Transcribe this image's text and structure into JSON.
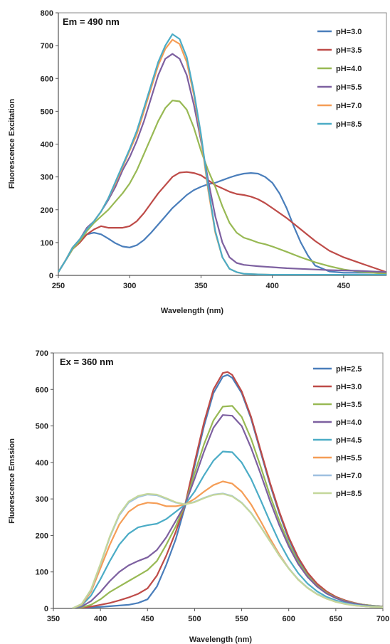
{
  "chart_data": [
    {
      "type": "line",
      "annotation": "Em = 490 nm",
      "xlabel": "Wavelength (nm)",
      "ylabel": "Fluorescence Excitation",
      "xlim": [
        250,
        480
      ],
      "ylim": [
        0,
        800
      ],
      "xticks": [
        250,
        300,
        350,
        400,
        450
      ],
      "yticks": [
        0,
        100,
        200,
        300,
        400,
        500,
        600,
        700,
        800
      ],
      "grid": false,
      "legend_position": "top-right",
      "series": [
        {
          "name": "pH=3.0",
          "color": "#4a7ebb",
          "x": [
            250,
            255,
            260,
            265,
            270,
            275,
            280,
            285,
            290,
            295,
            300,
            305,
            310,
            315,
            320,
            325,
            330,
            335,
            340,
            345,
            350,
            355,
            360,
            365,
            370,
            375,
            380,
            385,
            390,
            395,
            400,
            405,
            410,
            415,
            420,
            425,
            430,
            440,
            450,
            460,
            470,
            480
          ],
          "y": [
            10,
            45,
            80,
            105,
            125,
            130,
            125,
            112,
            98,
            88,
            85,
            92,
            108,
            130,
            155,
            180,
            205,
            225,
            245,
            260,
            270,
            278,
            282,
            290,
            298,
            305,
            310,
            312,
            310,
            300,
            282,
            250,
            205,
            150,
            100,
            60,
            30,
            12,
            8,
            8,
            8,
            6
          ]
        },
        {
          "name": "pH=3.5",
          "color": "#be4b48",
          "x": [
            250,
            255,
            260,
            265,
            270,
            275,
            280,
            285,
            290,
            295,
            300,
            305,
            310,
            315,
            320,
            325,
            330,
            335,
            340,
            345,
            350,
            355,
            360,
            365,
            370,
            375,
            380,
            385,
            390,
            395,
            400,
            410,
            420,
            430,
            440,
            450,
            460,
            470,
            480
          ],
          "y": [
            10,
            45,
            80,
            100,
            125,
            140,
            150,
            145,
            145,
            145,
            150,
            165,
            190,
            220,
            250,
            275,
            300,
            313,
            315,
            312,
            305,
            290,
            275,
            265,
            255,
            248,
            245,
            240,
            232,
            220,
            205,
            175,
            140,
            105,
            75,
            55,
            40,
            25,
            10
          ]
        },
        {
          "name": "pH=4.0",
          "color": "#98b954",
          "x": [
            250,
            255,
            260,
            265,
            270,
            275,
            280,
            285,
            290,
            295,
            300,
            305,
            310,
            315,
            320,
            325,
            330,
            335,
            340,
            345,
            350,
            355,
            360,
            365,
            370,
            375,
            380,
            385,
            390,
            395,
            400,
            410,
            420,
            430,
            440,
            450,
            460,
            470,
            480
          ],
          "y": [
            10,
            45,
            80,
            105,
            135,
            160,
            180,
            200,
            225,
            250,
            280,
            320,
            370,
            420,
            470,
            510,
            533,
            530,
            505,
            450,
            380,
            320,
            270,
            210,
            160,
            130,
            115,
            108,
            100,
            95,
            88,
            72,
            55,
            40,
            28,
            18,
            12,
            8,
            5
          ]
        },
        {
          "name": "pH=5.5",
          "color": "#7d60a0",
          "x": [
            250,
            255,
            260,
            265,
            270,
            275,
            280,
            285,
            290,
            295,
            300,
            305,
            310,
            315,
            320,
            325,
            330,
            335,
            340,
            345,
            350,
            355,
            360,
            365,
            370,
            375,
            380,
            385,
            390,
            400,
            410,
            420,
            430,
            440,
            450,
            460,
            470,
            480
          ],
          "y": [
            10,
            45,
            85,
            110,
            145,
            165,
            195,
            230,
            270,
            320,
            360,
            410,
            470,
            540,
            610,
            660,
            675,
            660,
            610,
            520,
            410,
            290,
            180,
            100,
            55,
            38,
            32,
            30,
            28,
            25,
            22,
            20,
            18,
            16,
            15,
            14,
            12,
            10
          ]
        },
        {
          "name": "pH=7.0",
          "color": "#f59d56",
          "x": [
            250,
            255,
            260,
            265,
            270,
            275,
            280,
            285,
            290,
            295,
            300,
            305,
            310,
            315,
            320,
            325,
            330,
            335,
            340,
            345,
            350,
            355,
            360,
            365,
            370,
            375,
            380,
            390,
            400,
            420,
            440,
            460,
            480
          ],
          "y": [
            10,
            45,
            85,
            110,
            140,
            165,
            195,
            235,
            280,
            330,
            380,
            430,
            500,
            570,
            640,
            690,
            718,
            705,
            650,
            550,
            420,
            260,
            130,
            55,
            20,
            10,
            5,
            3,
            2,
            2,
            2,
            2,
            2
          ]
        },
        {
          "name": "pH=8.5",
          "color": "#4bacc6",
          "x": [
            250,
            255,
            260,
            265,
            270,
            275,
            280,
            285,
            290,
            295,
            300,
            305,
            310,
            315,
            320,
            325,
            330,
            335,
            340,
            345,
            350,
            355,
            360,
            365,
            370,
            375,
            380,
            390,
            400,
            420,
            440,
            460,
            480
          ],
          "y": [
            10,
            45,
            85,
            110,
            140,
            165,
            195,
            235,
            285,
            335,
            385,
            440,
            510,
            580,
            650,
            700,
            735,
            720,
            665,
            560,
            430,
            270,
            135,
            55,
            20,
            10,
            5,
            3,
            2,
            2,
            2,
            2,
            2
          ]
        }
      ]
    },
    {
      "type": "line",
      "annotation": "Ex = 360 nm",
      "xlabel": "Wavelength (nm)",
      "ylabel": "Fluorescence Emssion",
      "xlim": [
        350,
        700
      ],
      "ylim": [
        0,
        700
      ],
      "xticks": [
        350,
        400,
        450,
        500,
        550,
        600,
        650,
        700
      ],
      "yticks": [
        0,
        100,
        200,
        300,
        400,
        500,
        600,
        700
      ],
      "grid": false,
      "legend_position": "top-right",
      "series": [
        {
          "name": "pH=2.5",
          "color": "#4a7ebb",
          "x": [
            370,
            380,
            390,
            400,
            410,
            420,
            430,
            440,
            450,
            460,
            470,
            480,
            490,
            500,
            510,
            520,
            530,
            535,
            540,
            550,
            560,
            570,
            580,
            590,
            600,
            610,
            620,
            630,
            640,
            650,
            660,
            670,
            680,
            690,
            700
          ],
          "y": [
            0,
            2,
            3,
            4,
            6,
            8,
            10,
            15,
            25,
            60,
            120,
            190,
            280,
            390,
            500,
            590,
            635,
            640,
            632,
            590,
            520,
            430,
            340,
            260,
            190,
            135,
            95,
            65,
            45,
            30,
            20,
            14,
            10,
            7,
            5
          ]
        },
        {
          "name": "pH=3.0",
          "color": "#be4b48",
          "x": [
            370,
            380,
            390,
            400,
            410,
            420,
            430,
            440,
            450,
            460,
            470,
            480,
            490,
            500,
            510,
            520,
            530,
            535,
            540,
            550,
            560,
            570,
            580,
            590,
            600,
            610,
            620,
            630,
            640,
            650,
            660,
            670,
            680,
            690,
            700
          ],
          "y": [
            0,
            2,
            5,
            10,
            15,
            22,
            30,
            40,
            55,
            90,
            145,
            210,
            285,
            400,
            510,
            600,
            645,
            648,
            640,
            595,
            525,
            435,
            345,
            265,
            195,
            140,
            98,
            68,
            47,
            32,
            22,
            15,
            10,
            7,
            5
          ]
        },
        {
          "name": "pH=3.5",
          "color": "#98b954",
          "x": [
            370,
            380,
            390,
            400,
            410,
            420,
            430,
            440,
            450,
            460,
            470,
            480,
            490,
            500,
            510,
            520,
            530,
            540,
            550,
            560,
            570,
            580,
            590,
            600,
            610,
            620,
            630,
            640,
            650,
            660,
            670,
            680,
            690,
            700
          ],
          "y": [
            0,
            3,
            10,
            25,
            45,
            60,
            75,
            90,
            105,
            130,
            175,
            225,
            285,
            370,
            450,
            515,
            553,
            555,
            525,
            465,
            390,
            310,
            240,
            178,
            128,
            90,
            62,
            43,
            29,
            20,
            14,
            10,
            7,
            5
          ]
        },
        {
          "name": "pH=4.0",
          "color": "#7d60a0",
          "x": [
            370,
            380,
            390,
            400,
            410,
            420,
            430,
            440,
            450,
            460,
            470,
            480,
            490,
            500,
            510,
            520,
            530,
            540,
            550,
            560,
            570,
            580,
            590,
            600,
            610,
            620,
            630,
            640,
            650,
            660,
            670,
            680,
            690,
            700
          ],
          "y": [
            0,
            5,
            20,
            45,
            75,
            100,
            118,
            130,
            140,
            160,
            195,
            240,
            285,
            355,
            430,
            495,
            530,
            528,
            500,
            440,
            370,
            295,
            228,
            170,
            122,
            86,
            60,
            41,
            28,
            19,
            13,
            9,
            6,
            4
          ]
        },
        {
          "name": "pH=4.5",
          "color": "#4bacc6",
          "x": [
            370,
            380,
            390,
            400,
            410,
            420,
            430,
            440,
            450,
            460,
            470,
            480,
            490,
            500,
            510,
            520,
            530,
            540,
            550,
            560,
            570,
            580,
            590,
            600,
            610,
            620,
            630,
            640,
            650,
            660,
            670,
            680,
            690,
            700
          ],
          "y": [
            0,
            8,
            35,
            80,
            130,
            175,
            205,
            222,
            228,
            232,
            245,
            265,
            285,
            320,
            365,
            405,
            430,
            428,
            400,
            355,
            298,
            238,
            182,
            135,
            97,
            68,
            47,
            32,
            22,
            15,
            10,
            7,
            5,
            3
          ]
        },
        {
          "name": "pH=5.5",
          "color": "#f59d56",
          "x": [
            370,
            380,
            390,
            400,
            410,
            420,
            430,
            440,
            450,
            460,
            470,
            480,
            490,
            500,
            510,
            520,
            530,
            540,
            550,
            560,
            570,
            580,
            590,
            600,
            610,
            620,
            630,
            640,
            650,
            660,
            670,
            680,
            690,
            700
          ],
          "y": [
            0,
            10,
            45,
            110,
            175,
            230,
            265,
            283,
            290,
            288,
            280,
            280,
            285,
            300,
            320,
            338,
            348,
            342,
            320,
            285,
            240,
            192,
            148,
            110,
            79,
            56,
            39,
            27,
            18,
            12,
            8,
            6,
            4,
            3
          ]
        },
        {
          "name": "pH=7.0",
          "color": "#9ec0e0",
          "x": [
            370,
            380,
            390,
            400,
            410,
            420,
            430,
            440,
            450,
            460,
            470,
            480,
            490,
            500,
            510,
            520,
            530,
            540,
            550,
            560,
            570,
            580,
            590,
            600,
            610,
            620,
            630,
            640,
            650,
            660,
            670,
            680,
            690,
            700
          ],
          "y": [
            0,
            12,
            50,
            120,
            195,
            255,
            290,
            305,
            312,
            310,
            300,
            290,
            285,
            292,
            303,
            312,
            315,
            308,
            290,
            262,
            225,
            185,
            145,
            110,
            80,
            57,
            40,
            28,
            19,
            13,
            9,
            6,
            4,
            3
          ]
        },
        {
          "name": "pH=8.5",
          "color": "#c4d79b",
          "x": [
            370,
            380,
            390,
            400,
            410,
            420,
            430,
            440,
            450,
            460,
            470,
            480,
            490,
            500,
            510,
            520,
            530,
            540,
            550,
            560,
            570,
            580,
            590,
            600,
            610,
            620,
            630,
            640,
            650,
            660,
            670,
            680,
            690,
            700
          ],
          "y": [
            0,
            12,
            52,
            122,
            198,
            258,
            293,
            308,
            314,
            312,
            302,
            291,
            285,
            291,
            302,
            311,
            314,
            307,
            289,
            261,
            224,
            184,
            144,
            109,
            79,
            56,
            39,
            27,
            18,
            12,
            8,
            6,
            4,
            3
          ]
        }
      ]
    }
  ]
}
